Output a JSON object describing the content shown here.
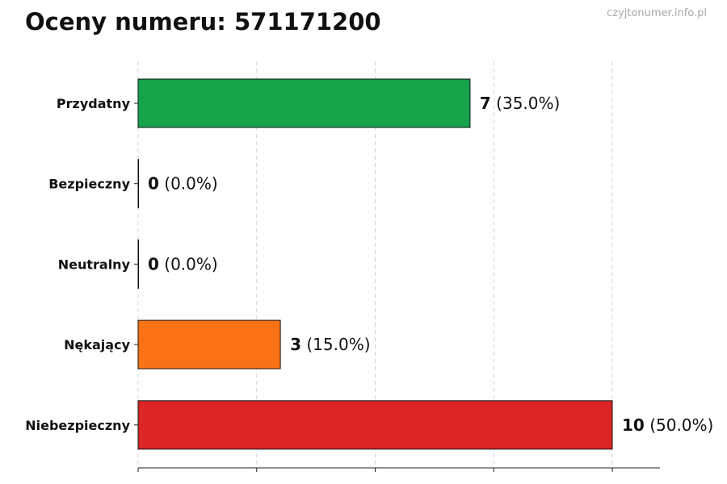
{
  "chart_data": {
    "type": "bar",
    "orientation": "horizontal",
    "title": "Oceny numeru: 571171200",
    "categories": [
      "Przydatny",
      "Bezpieczny",
      "Neutralny",
      "Nękający",
      "Niebezpieczny"
    ],
    "values": [
      7,
      0,
      0,
      3,
      10
    ],
    "percent_labels": [
      "(35.0%)",
      "(0.0%)",
      "(0.0%)",
      "(15.0%)",
      "(50.0%)"
    ],
    "colors": [
      "#16a34a",
      "#16a34a",
      "#9ca3af",
      "#f97316",
      "#dc2626"
    ],
    "xlim": [
      0,
      11
    ],
    "grid": true,
    "xlabel": "",
    "ylabel": ""
  },
  "watermark": "czyjtonumer.info.pl"
}
